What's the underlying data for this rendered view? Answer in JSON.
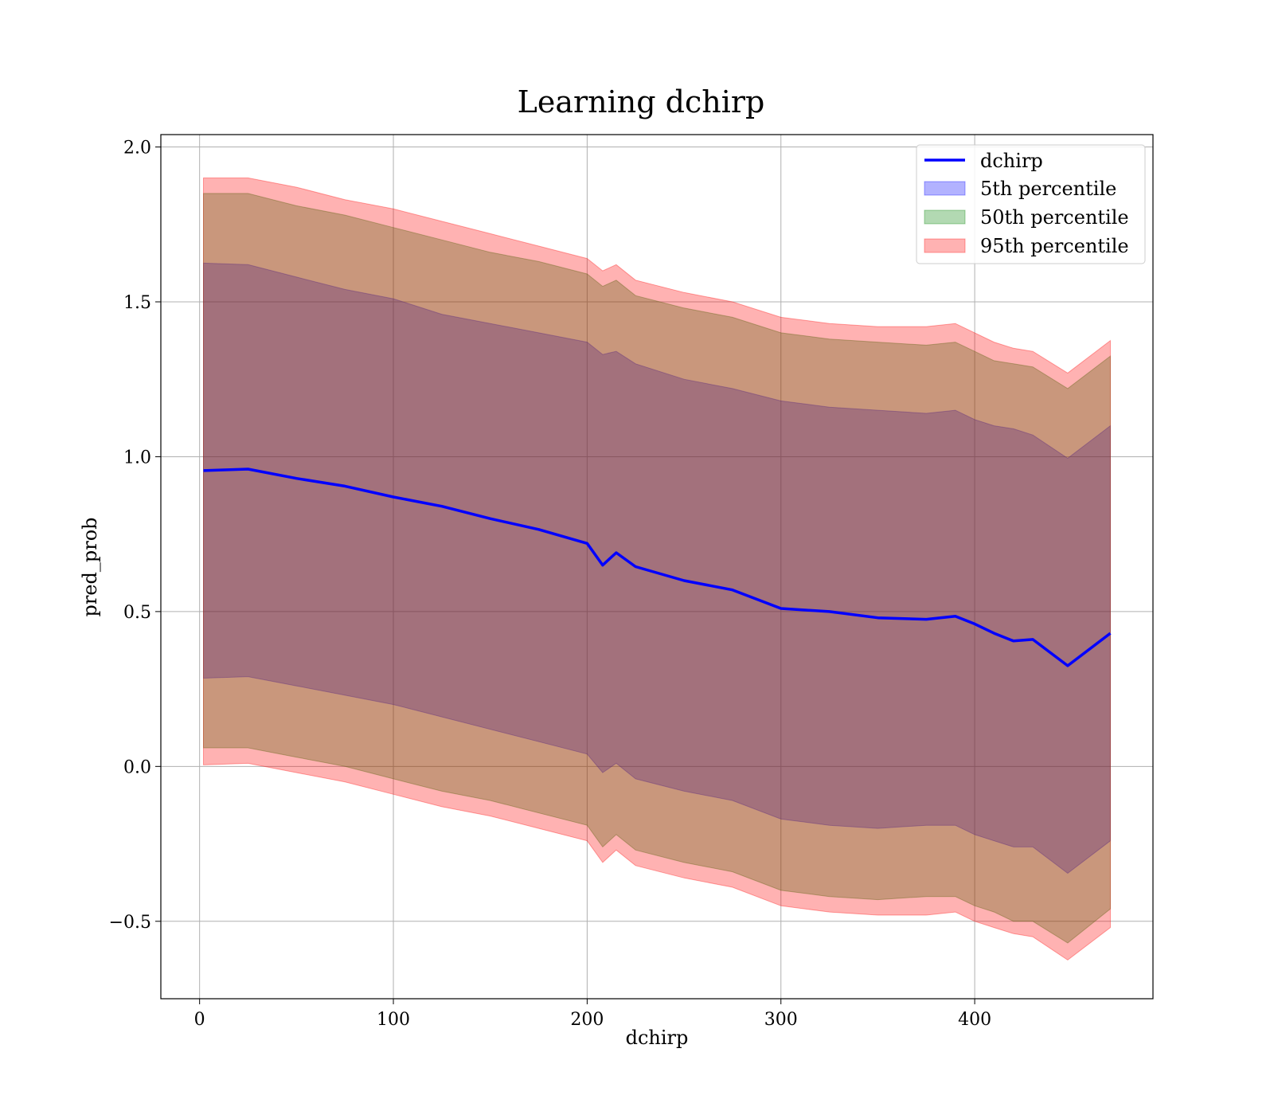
{
  "chart_data": {
    "type": "line",
    "title": "Learning dchirp",
    "xlabel": "dchirp",
    "ylabel": "pred_prob",
    "xlim": [
      -20,
      492
    ],
    "ylim": [
      -0.75,
      2.04
    ],
    "xticks": [
      0,
      100,
      200,
      300,
      400
    ],
    "yticks": [
      -0.5,
      0.0,
      0.5,
      1.0,
      1.5,
      2.0
    ],
    "xtick_labels": [
      "0",
      "100",
      "200",
      "300",
      "400"
    ],
    "ytick_labels": [
      "−0.5",
      "0.0",
      "0.5",
      "1.0",
      "1.5",
      "2.0"
    ],
    "grid": true,
    "legend_position": "top-right",
    "x": [
      2,
      25,
      50,
      75,
      100,
      125,
      150,
      175,
      200,
      208,
      215,
      225,
      250,
      275,
      300,
      325,
      350,
      375,
      390,
      400,
      410,
      420,
      430,
      448,
      470
    ],
    "series": [
      {
        "name": "dchirp",
        "kind": "line",
        "color": "#0000ff",
        "values": [
          0.955,
          0.96,
          0.93,
          0.905,
          0.87,
          0.84,
          0.8,
          0.765,
          0.72,
          0.65,
          0.69,
          0.645,
          0.6,
          0.57,
          0.51,
          0.5,
          0.48,
          0.475,
          0.485,
          0.46,
          0.43,
          0.405,
          0.41,
          0.325,
          0.43
        ]
      },
      {
        "name": "5th percentile",
        "kind": "band",
        "color": "#0000ff",
        "upper": [
          1.625,
          1.62,
          1.58,
          1.54,
          1.51,
          1.46,
          1.43,
          1.4,
          1.37,
          1.33,
          1.34,
          1.3,
          1.25,
          1.22,
          1.18,
          1.16,
          1.15,
          1.14,
          1.15,
          1.12,
          1.1,
          1.09,
          1.07,
          0.995,
          1.1
        ],
        "lower": [
          0.285,
          0.29,
          0.26,
          0.23,
          0.2,
          0.16,
          0.12,
          0.08,
          0.04,
          -0.02,
          0.01,
          -0.04,
          -0.08,
          -0.11,
          -0.17,
          -0.19,
          -0.2,
          -0.19,
          -0.19,
          -0.22,
          -0.24,
          -0.26,
          -0.26,
          -0.345,
          -0.24
        ]
      },
      {
        "name": "50th percentile",
        "kind": "band",
        "color": "#008000",
        "upper": [
          1.85,
          1.85,
          1.81,
          1.78,
          1.74,
          1.7,
          1.66,
          1.63,
          1.59,
          1.55,
          1.57,
          1.52,
          1.48,
          1.45,
          1.4,
          1.38,
          1.37,
          1.36,
          1.37,
          1.34,
          1.31,
          1.3,
          1.29,
          1.22,
          1.325
        ],
        "lower": [
          0.06,
          0.06,
          0.03,
          0.0,
          -0.04,
          -0.08,
          -0.11,
          -0.15,
          -0.19,
          -0.26,
          -0.22,
          -0.27,
          -0.31,
          -0.34,
          -0.4,
          -0.42,
          -0.43,
          -0.42,
          -0.42,
          -0.45,
          -0.47,
          -0.5,
          -0.5,
          -0.57,
          -0.46
        ]
      },
      {
        "name": "95th percentile",
        "kind": "band",
        "color": "#ff0000",
        "upper": [
          1.9,
          1.9,
          1.87,
          1.83,
          1.8,
          1.76,
          1.72,
          1.68,
          1.64,
          1.6,
          1.62,
          1.57,
          1.53,
          1.5,
          1.45,
          1.43,
          1.42,
          1.42,
          1.43,
          1.4,
          1.37,
          1.35,
          1.34,
          1.27,
          1.375
        ],
        "lower": [
          0.005,
          0.01,
          -0.02,
          -0.05,
          -0.09,
          -0.13,
          -0.16,
          -0.2,
          -0.24,
          -0.31,
          -0.27,
          -0.32,
          -0.36,
          -0.39,
          -0.45,
          -0.47,
          -0.48,
          -0.48,
          -0.47,
          -0.5,
          -0.52,
          -0.54,
          -0.55,
          -0.625,
          -0.52
        ]
      }
    ]
  }
}
